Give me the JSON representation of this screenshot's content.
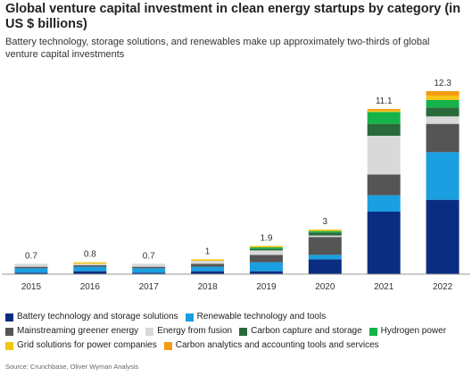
{
  "chart_data": {
    "type": "stacked_bar",
    "title": "Global venture capital investment in clean energy startups by category (in US $ billions)",
    "subtitle": "Battery technology, storage solutions, and renewables make up approximately two-thirds of global venture capital investments",
    "categories": [
      "2015",
      "2016",
      "2017",
      "2018",
      "2019",
      "2020",
      "2021",
      "2022"
    ],
    "series": [
      {
        "name": "Battery technology and storage solutions",
        "color": "#0b2d81",
        "values": [
          0.1,
          0.2,
          0.1,
          0.2,
          0.2,
          1.0,
          4.2,
          5.0
        ]
      },
      {
        "name": "Renewable technology and tools",
        "color": "#1a9fe0",
        "values": [
          0.3,
          0.3,
          0.3,
          0.3,
          0.6,
          0.3,
          1.1,
          3.2
        ]
      },
      {
        "name": "Mainstreaming greener energy",
        "color": "#555555",
        "values": [
          0.1,
          0.1,
          0.1,
          0.2,
          0.5,
          1.2,
          1.4,
          1.9
        ]
      },
      {
        "name": "Energy from fusion",
        "color": "#d9d9d9",
        "values": [
          0.2,
          0.1,
          0.2,
          0.2,
          0.3,
          0.1,
          2.6,
          0.5
        ]
      },
      {
        "name": "Carbon capture and storage",
        "color": "#2a6a3a",
        "values": [
          0,
          0,
          0,
          0,
          0.1,
          0.2,
          0.8,
          0.6
        ]
      },
      {
        "name": "Hydrogen power",
        "color": "#16b34a",
        "values": [
          0,
          0,
          0,
          0,
          0.1,
          0.1,
          0.8,
          0.5
        ]
      },
      {
        "name": "Grid solutions for power companies",
        "color": "#f5c518",
        "values": [
          0,
          0.1,
          0,
          0.1,
          0.1,
          0.1,
          0.1,
          0.3
        ]
      },
      {
        "name": "Carbon analytics and accounting tools and services",
        "color": "#f39c12",
        "values": [
          0,
          0,
          0,
          0,
          0,
          0,
          0.1,
          0.3
        ]
      }
    ],
    "totals": [
      0.7,
      0.8,
      0.7,
      1.0,
      1.9,
      3.0,
      11.1,
      12.3
    ],
    "source": "Source: Crunchbase, Oliver Wyman Analysis"
  }
}
